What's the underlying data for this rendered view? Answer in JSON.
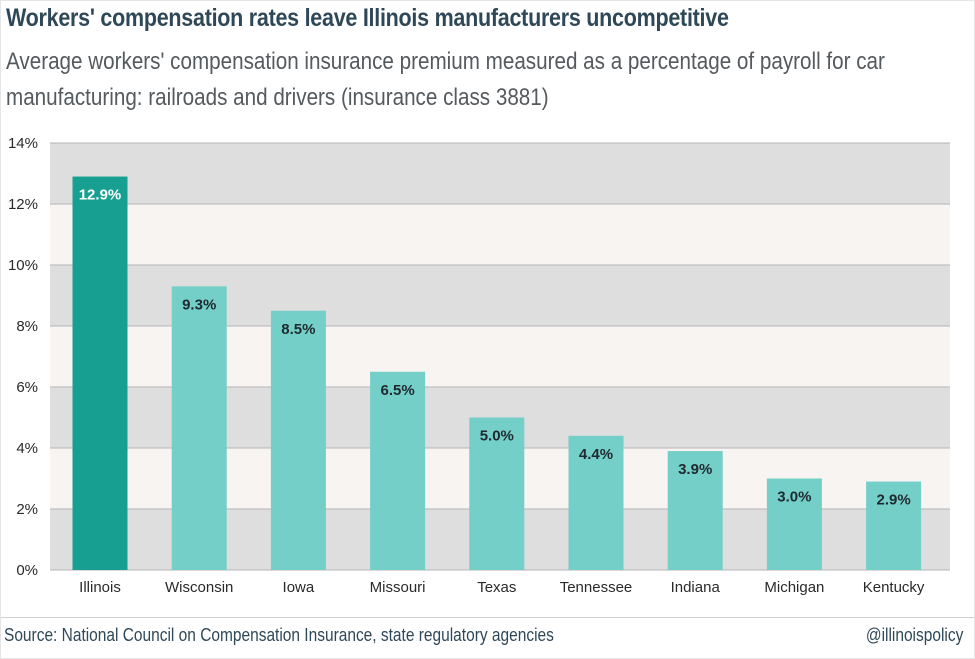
{
  "header": {
    "title": "Workers' compensation rates leave Illinois manufacturers uncompetitive",
    "subtitle": "Average workers' compensation insurance premium measured as a percentage of payroll for car manufacturing: railroads and drivers (insurance class 3881)"
  },
  "footer": {
    "source": "Source: National Council on Compensation Insurance, state regulatory agencies",
    "credit": "@illinoispolicy"
  },
  "colors": {
    "highlight_bar": "#17a092",
    "bar": "#74cfc8",
    "band_dark": "#dedede",
    "band_light": "#f7f4f2",
    "gridline": "#b5b5b5",
    "label_on_highlight": "#ffffff",
    "label_on_bar": "#1f2a30"
  },
  "chart_data": {
    "type": "bar",
    "title": "Workers' compensation rates leave Illinois manufacturers uncompetitive",
    "categories": [
      "Illinois",
      "Wisconsin",
      "Iowa",
      "Missouri",
      "Texas",
      "Tennessee",
      "Indiana",
      "Michigan",
      "Kentucky"
    ],
    "values": [
      12.9,
      9.3,
      8.5,
      6.5,
      5.0,
      4.4,
      3.9,
      3.0,
      2.9
    ],
    "value_labels": [
      "12.9%",
      "9.3%",
      "8.5%",
      "6.5%",
      "5.0%",
      "4.4%",
      "3.9%",
      "3.0%",
      "2.9%"
    ],
    "highlight_category": "Illinois",
    "ylim": [
      0,
      14
    ],
    "yticks": [
      0,
      2,
      4,
      6,
      8,
      10,
      12,
      14
    ],
    "ytick_labels": [
      "0%",
      "2%",
      "4%",
      "6%",
      "8%",
      "10%",
      "12%",
      "14%"
    ],
    "xlabel": "",
    "ylabel": "",
    "grid": true,
    "legend": "none"
  }
}
